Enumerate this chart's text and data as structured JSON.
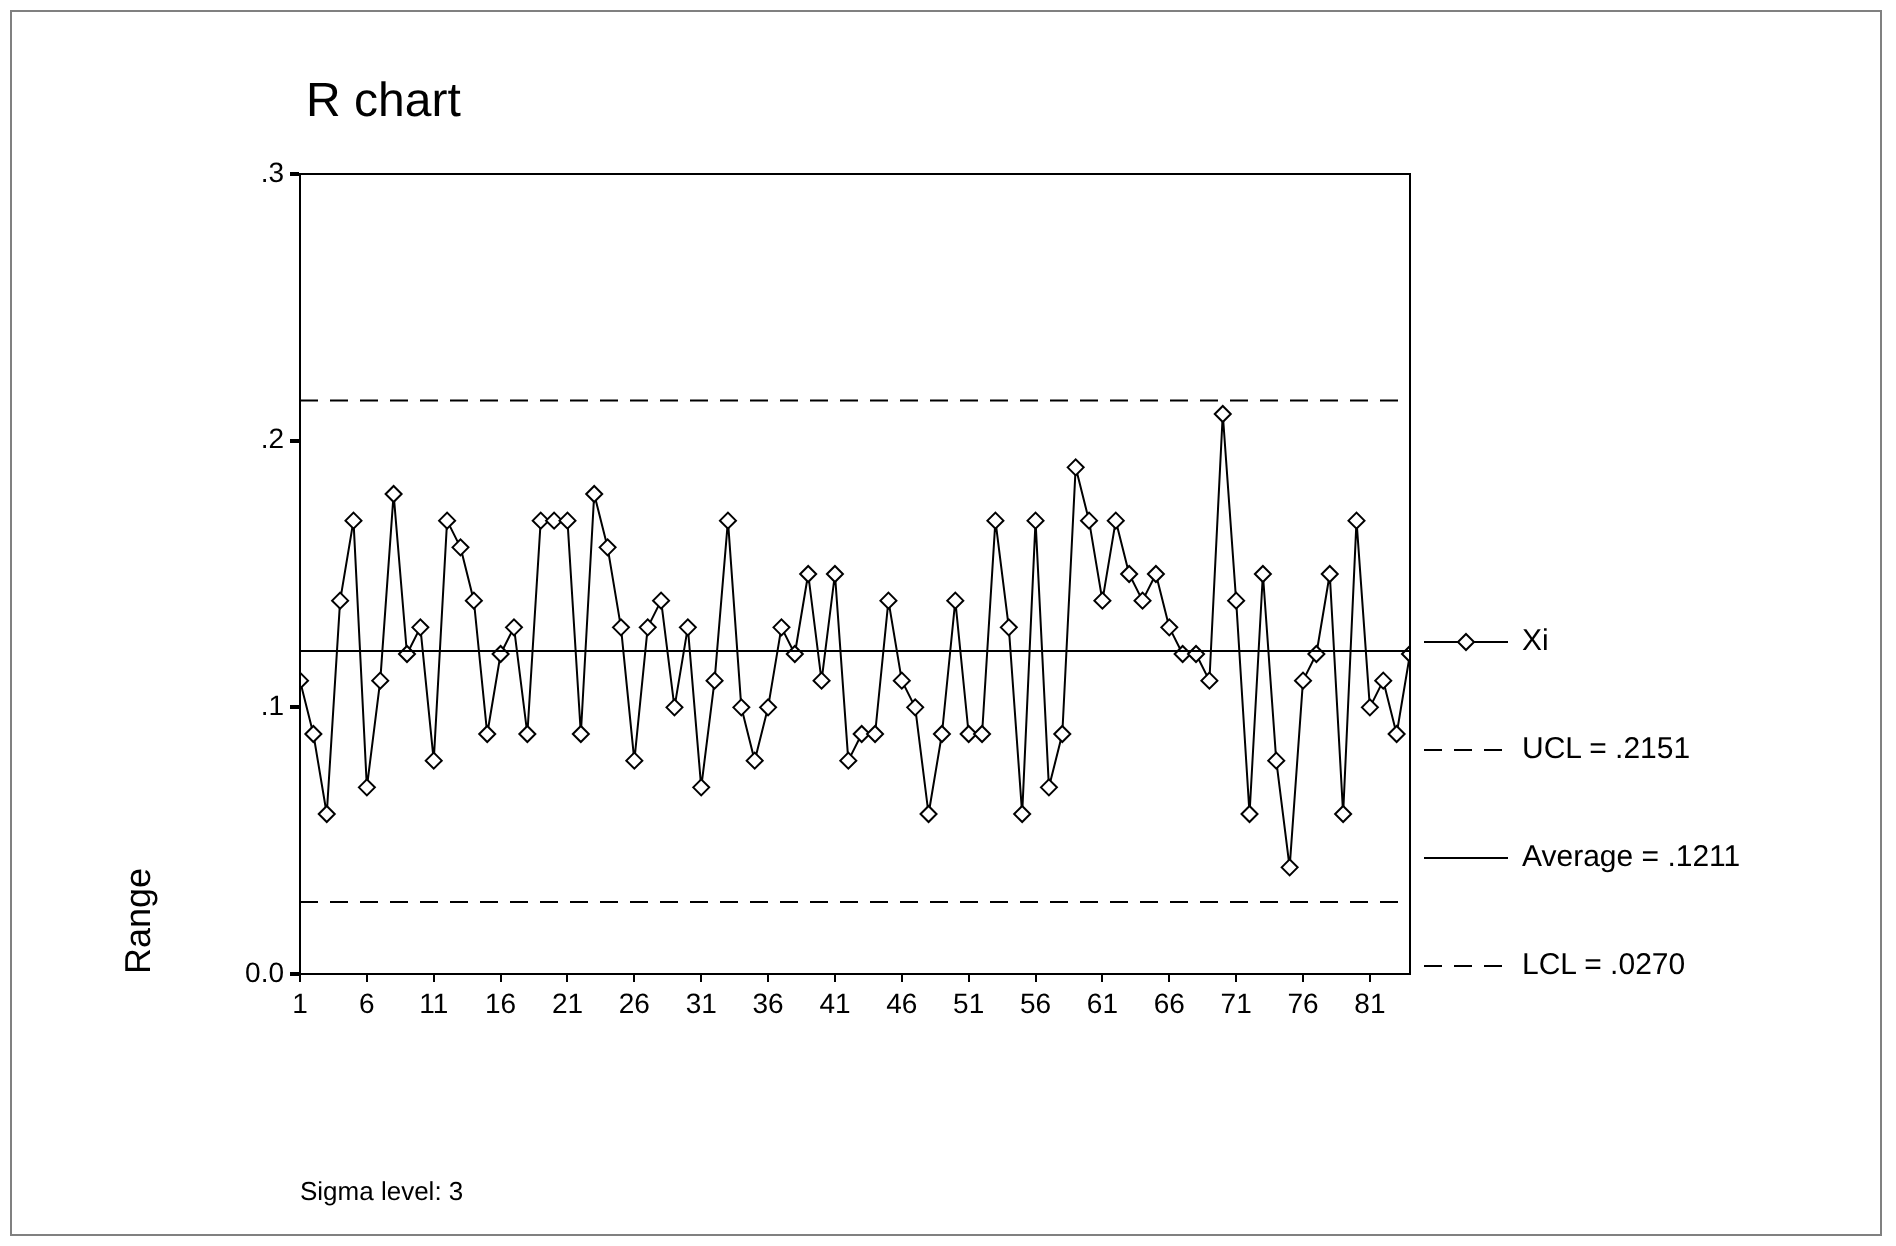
{
  "chart_data": {
    "type": "line",
    "title": "R chart",
    "ylabel": "Range",
    "x": [
      1,
      2,
      3,
      4,
      5,
      6,
      7,
      8,
      9,
      10,
      11,
      12,
      13,
      14,
      15,
      16,
      17,
      18,
      19,
      20,
      21,
      22,
      23,
      24,
      25,
      26,
      27,
      28,
      29,
      30,
      31,
      32,
      33,
      34,
      35,
      36,
      37,
      38,
      39,
      40,
      41,
      42,
      43,
      44,
      45,
      46,
      47,
      48,
      49,
      50,
      51,
      52,
      53,
      54,
      55,
      56,
      57,
      58,
      59,
      60,
      61,
      62,
      63,
      64,
      65,
      66,
      67,
      68,
      69,
      70,
      71,
      72,
      73,
      74,
      75,
      76,
      77,
      78,
      79,
      80,
      81,
      82,
      83,
      84
    ],
    "series": [
      {
        "name": "Xi",
        "color": "#000000",
        "values": [
          0.11,
          0.09,
          0.06,
          0.14,
          0.17,
          0.07,
          0.11,
          0.18,
          0.12,
          0.13,
          0.08,
          0.17,
          0.16,
          0.14,
          0.09,
          0.12,
          0.13,
          0.09,
          0.17,
          0.17,
          0.17,
          0.09,
          0.18,
          0.16,
          0.13,
          0.08,
          0.13,
          0.14,
          0.1,
          0.13,
          0.07,
          0.11,
          0.17,
          0.1,
          0.08,
          0.1,
          0.13,
          0.12,
          0.15,
          0.11,
          0.15,
          0.08,
          0.09,
          0.09,
          0.14,
          0.11,
          0.1,
          0.06,
          0.09,
          0.14,
          0.09,
          0.09,
          0.17,
          0.13,
          0.06,
          0.17,
          0.07,
          0.09,
          0.19,
          0.17,
          0.14,
          0.17,
          0.15,
          0.14,
          0.15,
          0.13,
          0.12,
          0.12,
          0.11,
          0.21,
          0.14,
          0.06,
          0.15,
          0.08,
          0.04,
          0.11,
          0.12,
          0.15,
          0.06,
          0.17,
          0.1,
          0.11,
          0.09,
          0.12
        ]
      }
    ],
    "xlim": [
      1,
      84
    ],
    "xticks": [
      1,
      6,
      11,
      16,
      21,
      26,
      31,
      36,
      41,
      46,
      51,
      56,
      61,
      66,
      71,
      76,
      81
    ],
    "ylim": [
      0,
      0.3
    ],
    "yticks": [
      {
        "value": 0,
        "label": "0.0"
      },
      {
        "value": 0.1,
        "label": ".1"
      },
      {
        "value": 0.2,
        "label": ".2"
      },
      {
        "value": 0.3,
        "label": ".3"
      }
    ],
    "ref_lines": [
      {
        "axis": "y",
        "value": 0.2151,
        "label": "UCL = .2151",
        "color": "#000000",
        "line_style": "dashed"
      },
      {
        "axis": "y",
        "value": 0.1211,
        "label": "Average = .1211",
        "color": "#000000",
        "line_style": "solid"
      },
      {
        "axis": "y",
        "value": 0.027,
        "label": "LCL = .0270",
        "color": "#000000",
        "line_style": "dashed"
      }
    ],
    "marker": "diamond",
    "line_style": "solid",
    "legend": "right",
    "annotations": [
      "Sigma level: 3"
    ]
  }
}
